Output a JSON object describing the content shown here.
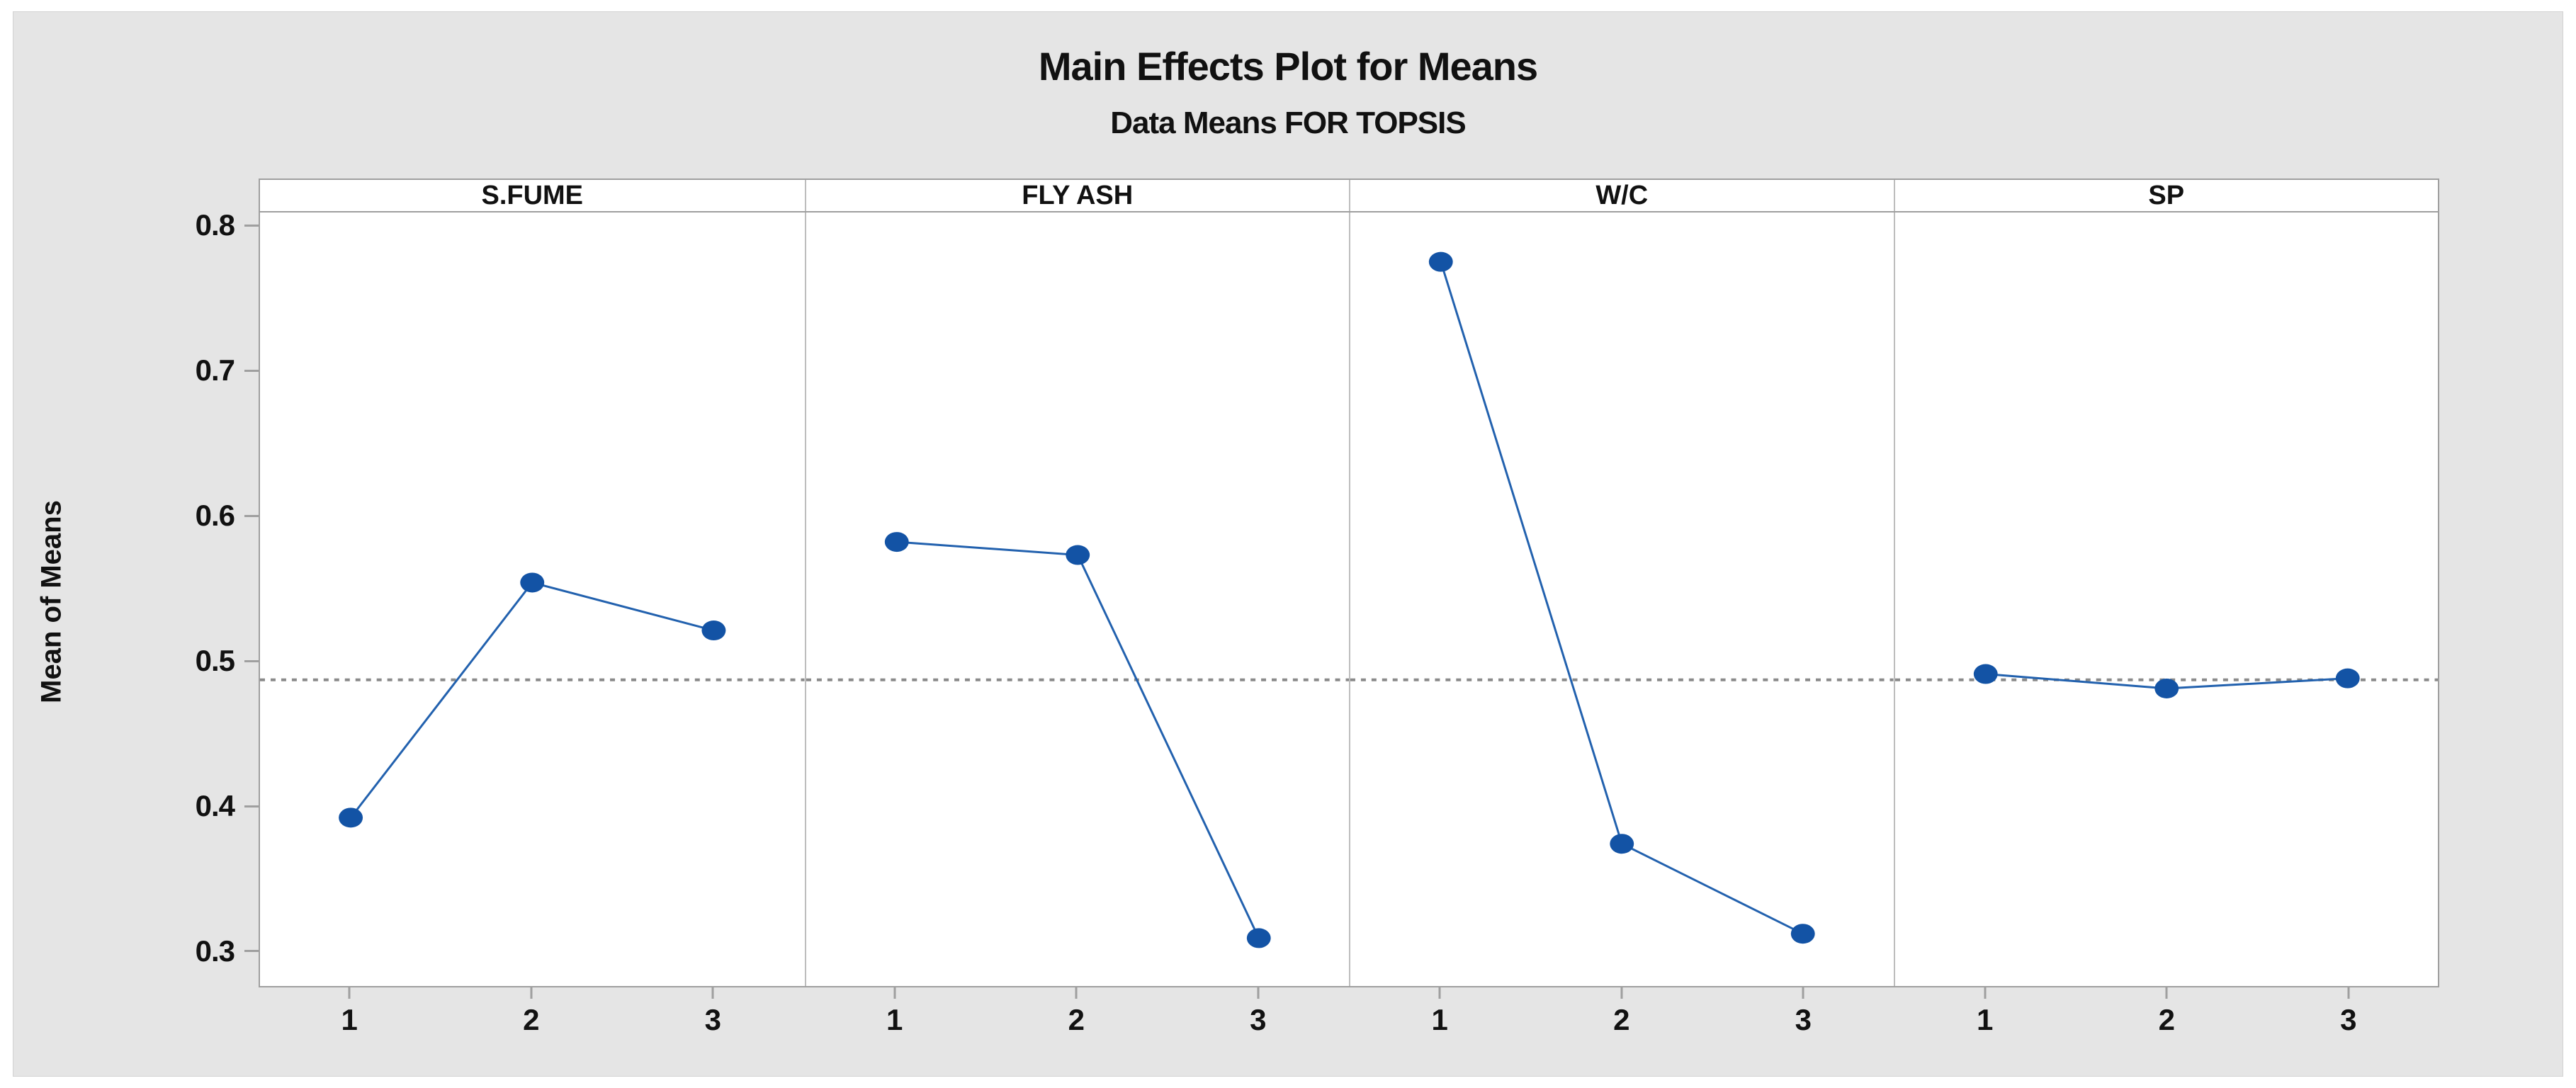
{
  "chart_data": {
    "type": "line",
    "title": "Main Effects Plot for Means",
    "subtitle": "Data Means FOR TOPSIS",
    "ylabel": "Mean of Means",
    "categories": [
      "1",
      "2",
      "3"
    ],
    "panels": [
      {
        "label": "S.FUME",
        "values": [
          0.393,
          0.555,
          0.522
        ]
      },
      {
        "label": "FLY ASH",
        "values": [
          0.583,
          0.574,
          0.31
        ]
      },
      {
        "label": "W/C",
        "values": [
          0.776,
          0.375,
          0.313
        ]
      },
      {
        "label": "SP",
        "values": [
          0.492,
          0.482,
          0.489
        ]
      }
    ],
    "yticks": [
      0.8,
      0.7,
      0.6,
      0.5,
      0.4,
      0.3
    ],
    "ylim": [
      0.277,
      0.81
    ],
    "reference_mean": 0.488,
    "grid": false,
    "legend": null,
    "colors": {
      "marker": "#1353a5",
      "line": "#2261ae",
      "reference": "#8a8a8a",
      "axis": "#9f9f9f",
      "plot_background": "#ffffff",
      "figure_background": "#e5e5e5"
    }
  }
}
